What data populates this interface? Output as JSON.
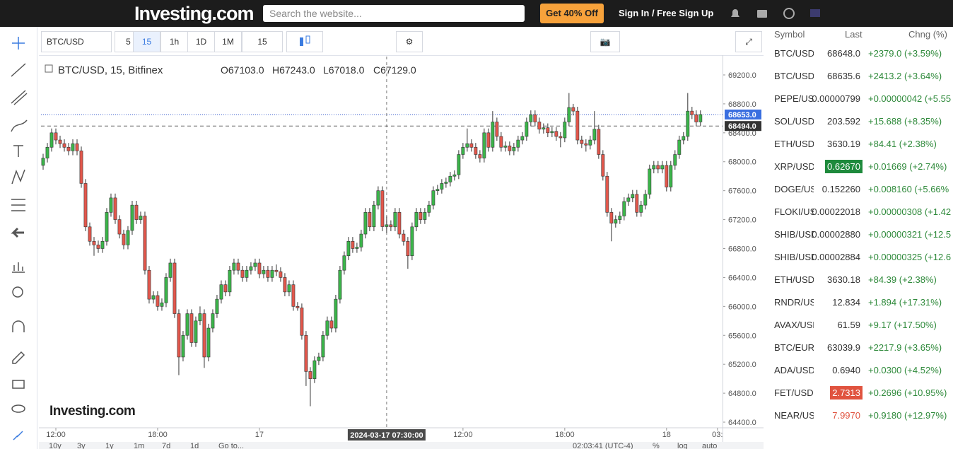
{
  "header": {
    "logo": "Investing.com",
    "search_placeholder": "Search the website...",
    "promo": "Get 40% Off",
    "sign_in": "Sign In / Free Sign Up"
  },
  "toolbar": {
    "symbol": "BTC/USD",
    "intervals": [
      "5",
      "15",
      "1h",
      "1D",
      "1M",
      "15"
    ]
  },
  "chart_data": {
    "type": "candlestick",
    "title": "BTC/USD, 15, Bitfinex",
    "ohlc_legend": [
      "O67103.0",
      "H67243.0",
      "L67018.0",
      "C67129.0"
    ],
    "watermark": "Investing.com",
    "up_color": "#3bb54a",
    "down_color": "#e2574c",
    "grid": false,
    "ylim": [
      64322,
      69454
    ],
    "yticks": [
      {
        "value": 64400,
        "label": "64400.0"
      },
      {
        "value": 64800,
        "label": "64800.0"
      },
      {
        "value": 65200,
        "label": "65200.0"
      },
      {
        "value": 65600,
        "label": "65600.0"
      },
      {
        "value": 66000,
        "label": "66000.0"
      },
      {
        "value": 66400,
        "label": "66400.0"
      },
      {
        "value": 66800,
        "label": "66800.0"
      },
      {
        "value": 67200,
        "label": "67200.0"
      },
      {
        "value": 67600,
        "label": "67600.0"
      },
      {
        "value": 68000,
        "label": "68000.0"
      },
      {
        "value": 68400,
        "label": "68400.0"
      },
      {
        "value": 68800,
        "label": "68800.0"
      },
      {
        "value": 69200,
        "label": "69200.0"
      }
    ],
    "xlim": [
      -0.5,
      160.2
    ],
    "xticks": [
      {
        "value": 3,
        "label": "12:00"
      },
      {
        "value": 27,
        "label": "18:00"
      },
      {
        "value": 51,
        "label": "17"
      },
      {
        "value": 99,
        "label": "12:00"
      },
      {
        "value": 123,
        "label": "18:00"
      },
      {
        "value": 147,
        "label": "18"
      },
      {
        "value": 159,
        "label": "03:"
      }
    ],
    "last_price": {
      "value": 68653,
      "label": "68653.0"
    },
    "marker_price": {
      "value": 68494,
      "label": "68494.0"
    },
    "crosshair": {
      "x": 81,
      "label": "2024-03-17 07:30:00"
    },
    "candles": [
      [
        67950,
        68110,
        67890,
        68050
      ],
      [
        68050,
        68260,
        67990,
        68200
      ],
      [
        68200,
        68460,
        68140,
        68400
      ],
      [
        68400,
        68460,
        68240,
        68300
      ],
      [
        68300,
        68360,
        68190,
        68250
      ],
      [
        68250,
        68310,
        68140,
        68200
      ],
      [
        68200,
        68260,
        68090,
        68150
      ],
      [
        68150,
        68310,
        68090,
        68250
      ],
      [
        68250,
        68310,
        68090,
        68150
      ],
      [
        68150,
        68210,
        67640,
        67700
      ],
      [
        67700,
        67760,
        67040,
        67100
      ],
      [
        67100,
        67160,
        66840,
        66900
      ],
      [
        66900,
        66960,
        66700,
        66850
      ],
      [
        66850,
        66910,
        66740,
        66800
      ],
      [
        66800,
        66960,
        66740,
        66900
      ],
      [
        66900,
        67360,
        66840,
        67300
      ],
      [
        67300,
        67560,
        67240,
        67500
      ],
      [
        67500,
        67560,
        67140,
        67200
      ],
      [
        67200,
        67260,
        66940,
        67000
      ],
      [
        67000,
        67060,
        66790,
        66850
      ],
      [
        66850,
        67110,
        66790,
        67050
      ],
      [
        67050,
        67460,
        66990,
        67400
      ],
      [
        67400,
        67460,
        67140,
        67200
      ],
      [
        67200,
        67310,
        67140,
        67250
      ],
      [
        67250,
        67310,
        66440,
        66500
      ],
      [
        66500,
        66560,
        66040,
        66100
      ],
      [
        66100,
        66210,
        66040,
        66150
      ],
      [
        66150,
        66210,
        65940,
        66000
      ],
      [
        66000,
        66110,
        65940,
        66050
      ],
      [
        66050,
        66460,
        65990,
        66400
      ],
      [
        66400,
        66660,
        66340,
        66600
      ],
      [
        66600,
        66660,
        65840,
        65900
      ],
      [
        65900,
        65960,
        65050,
        65300
      ],
      [
        65300,
        65660,
        65240,
        65600
      ],
      [
        65600,
        65960,
        65540,
        65900
      ],
      [
        65900,
        65960,
        65440,
        65500
      ],
      [
        65500,
        65860,
        65440,
        65800
      ],
      [
        65800,
        66000,
        65740,
        65900
      ],
      [
        65900,
        65960,
        65150,
        65300
      ],
      [
        65300,
        65760,
        65240,
        65700
      ],
      [
        65700,
        65960,
        65640,
        65900
      ],
      [
        65900,
        66160,
        65840,
        66100
      ],
      [
        66100,
        66360,
        66040,
        66300
      ],
      [
        66300,
        66360,
        66140,
        66200
      ],
      [
        66200,
        66560,
        66140,
        66500
      ],
      [
        66500,
        66660,
        66440,
        66600
      ],
      [
        66600,
        66660,
        66440,
        66500
      ],
      [
        66500,
        66560,
        66340,
        66400
      ],
      [
        66400,
        66560,
        66340,
        66500
      ],
      [
        66500,
        66610,
        66440,
        66550
      ],
      [
        66550,
        66660,
        66490,
        66600
      ],
      [
        66600,
        66660,
        66390,
        66450
      ],
      [
        66450,
        66560,
        66390,
        66500
      ],
      [
        66500,
        66560,
        66340,
        66400
      ],
      [
        66400,
        66560,
        66340,
        66500
      ],
      [
        66500,
        66580,
        66420,
        66480
      ],
      [
        66480,
        66540,
        66340,
        66400
      ],
      [
        66400,
        66460,
        66140,
        66200
      ],
      [
        66200,
        66360,
        66140,
        66300
      ],
      [
        66300,
        66360,
        65940,
        66000
      ],
      [
        66000,
        66060,
        65940,
        65980
      ],
      [
        65980,
        66040,
        65540,
        65600
      ],
      [
        65600,
        65660,
        64900,
        65100
      ],
      [
        65100,
        65160,
        64620,
        65000
      ],
      [
        65000,
        65310,
        64940,
        65250
      ],
      [
        65250,
        65360,
        65190,
        65300
      ],
      [
        65300,
        65660,
        65240,
        65600
      ],
      [
        65600,
        65860,
        65540,
        65800
      ],
      [
        65800,
        65860,
        65640,
        65700
      ],
      [
        65700,
        66160,
        65640,
        66100
      ],
      [
        66100,
        66560,
        66040,
        66500
      ],
      [
        66500,
        66760,
        66440,
        66700
      ],
      [
        66700,
        66960,
        66640,
        66900
      ],
      [
        66900,
        66960,
        66740,
        66800
      ],
      [
        66800,
        66880,
        66740,
        66820
      ],
      [
        66820,
        67060,
        66760,
        67000
      ],
      [
        67000,
        67360,
        66940,
        67300
      ],
      [
        67300,
        67360,
        67040,
        67100
      ],
      [
        67100,
        67460,
        67040,
        67400
      ],
      [
        67400,
        67660,
        67340,
        67600
      ],
      [
        67600,
        67660,
        67040,
        67103
      ],
      [
        67103,
        67243,
        67018,
        67129
      ],
      [
        67129,
        67190,
        67040,
        67100
      ],
      [
        67100,
        67360,
        67040,
        67300
      ],
      [
        67300,
        67360,
        66940,
        67000
      ],
      [
        67000,
        67060,
        66840,
        66900
      ],
      [
        66900,
        66960,
        66520,
        66700
      ],
      [
        66700,
        67160,
        66640,
        67100
      ],
      [
        67100,
        67360,
        67040,
        67300
      ],
      [
        67300,
        67360,
        67140,
        67200
      ],
      [
        67200,
        67360,
        67140,
        67300
      ],
      [
        67300,
        67460,
        67240,
        67400
      ],
      [
        67400,
        67660,
        67340,
        67600
      ],
      [
        67600,
        67680,
        67540,
        67620
      ],
      [
        67620,
        67760,
        67560,
        67700
      ],
      [
        67700,
        67780,
        67640,
        67720
      ],
      [
        67720,
        67860,
        67660,
        67800
      ],
      [
        67800,
        67880,
        67740,
        67820
      ],
      [
        67820,
        68160,
        67760,
        68100
      ],
      [
        68100,
        68260,
        68040,
        68200
      ],
      [
        68200,
        68460,
        68140,
        68250
      ],
      [
        68250,
        68310,
        68140,
        68200
      ],
      [
        68200,
        68260,
        68040,
        68100
      ],
      [
        68100,
        68160,
        67990,
        68050
      ],
      [
        68050,
        68460,
        67990,
        68400
      ],
      [
        68400,
        68460,
        68140,
        68200
      ],
      [
        68200,
        68700,
        68140,
        68550
      ],
      [
        68550,
        68610,
        68290,
        68350
      ],
      [
        68350,
        68410,
        68140,
        68200
      ],
      [
        68200,
        68280,
        68140,
        68220
      ],
      [
        68220,
        68280,
        68090,
        68150
      ],
      [
        68150,
        68260,
        68090,
        68200
      ],
      [
        68200,
        68360,
        68140,
        68300
      ],
      [
        68300,
        68410,
        68240,
        68350
      ],
      [
        68350,
        68610,
        68290,
        68550
      ],
      [
        68550,
        68710,
        68490,
        68650
      ],
      [
        68650,
        68710,
        68490,
        68550
      ],
      [
        68550,
        68610,
        68390,
        68450
      ],
      [
        68450,
        68530,
        68390,
        68470
      ],
      [
        68470,
        68530,
        68340,
        68400
      ],
      [
        68400,
        68480,
        68340,
        68420
      ],
      [
        68420,
        68480,
        68290,
        68350
      ],
      [
        68350,
        68410,
        68200,
        68330
      ],
      [
        68330,
        68610,
        68270,
        68550
      ],
      [
        68550,
        68950,
        68490,
        68750
      ],
      [
        68750,
        68800,
        68640,
        68700
      ],
      [
        68700,
        68760,
        68240,
        68300
      ],
      [
        68300,
        68360,
        68190,
        68250
      ],
      [
        68250,
        68310,
        68140,
        68230
      ],
      [
        68230,
        68360,
        68170,
        68300
      ],
      [
        68300,
        68700,
        68240,
        68450
      ],
      [
        68450,
        68510,
        68040,
        68100
      ],
      [
        68100,
        68160,
        67740,
        67800
      ],
      [
        67800,
        67860,
        67240,
        67300
      ],
      [
        67300,
        67360,
        66900,
        67150
      ],
      [
        67150,
        67260,
        67090,
        67200
      ],
      [
        67200,
        67310,
        67140,
        67250
      ],
      [
        67250,
        67510,
        67190,
        67450
      ],
      [
        67450,
        67560,
        67390,
        67500
      ],
      [
        67500,
        67610,
        67440,
        67550
      ],
      [
        67550,
        67610,
        67240,
        67300
      ],
      [
        67300,
        67460,
        67240,
        67400
      ],
      [
        67400,
        67610,
        67340,
        67550
      ],
      [
        67550,
        67960,
        67490,
        67900
      ],
      [
        67900,
        68010,
        67840,
        67950
      ],
      [
        67950,
        68010,
        67840,
        67900
      ],
      [
        67900,
        68010,
        67840,
        67950
      ],
      [
        67950,
        68010,
        67590,
        67650
      ],
      [
        67650,
        68010,
        67590,
        67950
      ],
      [
        67950,
        68160,
        67890,
        68100
      ],
      [
        68100,
        68360,
        68040,
        68300
      ],
      [
        68300,
        68410,
        68240,
        68350
      ],
      [
        68350,
        68950,
        68290,
        68700
      ],
      [
        68700,
        68760,
        68590,
        68650
      ],
      [
        68650,
        68710,
        68490,
        68550
      ],
      [
        68550,
        68710,
        68490,
        68653
      ]
    ]
  },
  "watchlist": {
    "columns": [
      "Symbol",
      "Last",
      "Chng (%)"
    ],
    "rows": [
      {
        "symbol": "BTC/USD",
        "last": "68648.0",
        "change": "+2379.0 (+3.59%)"
      },
      {
        "symbol": "BTC/USD",
        "last": "68635.6",
        "change": "+2413.2 (+3.64%)"
      },
      {
        "symbol": "PEPE/USD",
        "last": "0.00000799",
        "change": "+0.00000042 (+5.55"
      },
      {
        "symbol": "SOL/USD",
        "last": "203.592",
        "change": "+15.688 (+8.35%)"
      },
      {
        "symbol": "ETH/USD",
        "last": "3630.19",
        "change": "+84.41 (+2.38%)"
      },
      {
        "symbol": "XRP/USD",
        "last": "0.62670",
        "change": "+0.01669 (+2.74%)",
        "last_bg": "#1e8a3c"
      },
      {
        "symbol": "DOGE/USD",
        "last": "0.152260",
        "change": "+0.008160 (+5.66%"
      },
      {
        "symbol": "FLOKI/USD",
        "last": "0.00022018",
        "change": "+0.00000308 (+1.42"
      },
      {
        "symbol": "SHIB/USD",
        "last": "0.00002880",
        "change": "+0.00000321 (+12.5"
      },
      {
        "symbol": "SHIB/USD",
        "last": "0.00002884",
        "change": "+0.00000325 (+12.6"
      },
      {
        "symbol": "ETH/USD",
        "last": "3630.18",
        "change": "+84.39 (+2.38%)"
      },
      {
        "symbol": "RNDR/USD",
        "last": "12.834",
        "change": "+1.894 (+17.31%)"
      },
      {
        "symbol": "AVAX/USD",
        "last": "61.59",
        "change": "+9.17 (+17.50%)"
      },
      {
        "symbol": "BTC/EUR",
        "last": "63039.9",
        "change": "+2217.9 (+3.65%)"
      },
      {
        "symbol": "ADA/USD",
        "last": "0.6940",
        "change": "+0.0300 (+4.52%)"
      },
      {
        "symbol": "FET/USD",
        "last": "2.7313",
        "change": "+0.2696 (+10.95%)",
        "last_bg": "#e0533f"
      },
      {
        "symbol": "NEAR/USD",
        "last": "7.9970",
        "change": "+0.9180 (+12.97%)",
        "last_color": "#e0533f"
      }
    ]
  },
  "bottom_bar": {
    "ranges": [
      "10y",
      "3y",
      "1y",
      "1m",
      "7d",
      "1d",
      "Go to..."
    ],
    "clock": "02:03:41 (UTC-4)",
    "options": [
      "%",
      "log",
      "auto"
    ]
  }
}
